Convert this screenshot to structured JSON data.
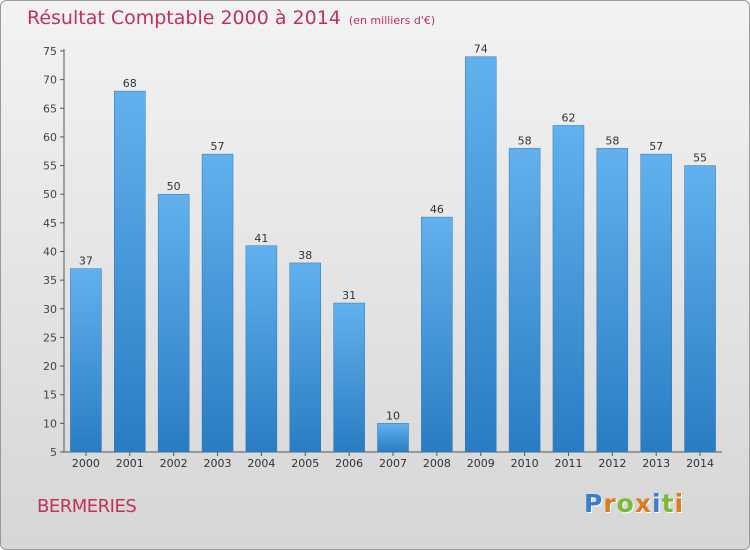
{
  "chart_data": {
    "type": "bar",
    "title": "Résultat Comptable 2000 à 2014",
    "subtitle": "(en milliers d'€)",
    "categories": [
      "2000",
      "2001",
      "2002",
      "2003",
      "2004",
      "2005",
      "2006",
      "2007",
      "2008",
      "2009",
      "2010",
      "2011",
      "2012",
      "2013",
      "2014"
    ],
    "values": [
      37,
      68,
      50,
      57,
      41,
      38,
      31,
      10,
      46,
      74,
      58,
      62,
      58,
      57,
      55
    ],
    "xlabel": "",
    "ylabel": "",
    "ylim": [
      5,
      75
    ],
    "yticks": [
      5,
      10,
      15,
      20,
      25,
      30,
      35,
      40,
      45,
      50,
      55,
      60,
      65,
      70,
      75
    ],
    "grid": false,
    "bar_color": "#3f95d9",
    "title_color": "#c0325a"
  },
  "footer": {
    "location": "BERMERIES",
    "logo": [
      "P",
      "r",
      "o",
      "x",
      "i",
      "t",
      "i"
    ],
    "logo_colors": [
      "#3a7fcf",
      "#e07a1f",
      "#7cb83a",
      "#e07a1f",
      "#3a7fcf",
      "#7cb83a",
      "#e07a1f"
    ]
  }
}
